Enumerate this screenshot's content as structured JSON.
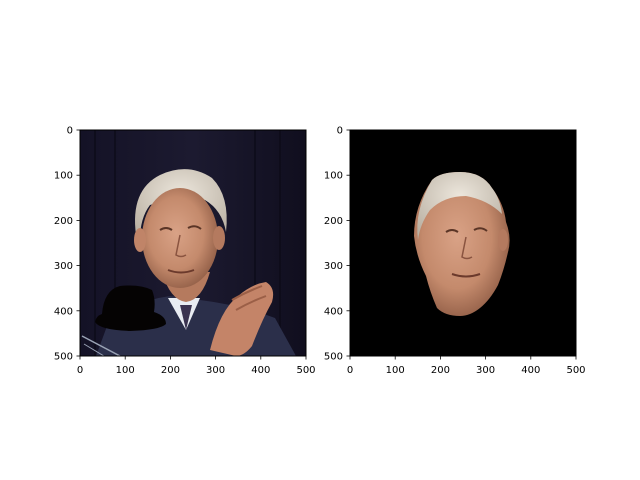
{
  "chart_data": [
    {
      "type": "image",
      "panel": "left",
      "content": "Original photo of an older man with light gray hair clapping, dark curtain background, a black hat-shaped blob near lower-left",
      "xlim": [
        0,
        500
      ],
      "ylim": [
        500,
        0
      ],
      "x_ticks": [
        0,
        100,
        200,
        300,
        400,
        500
      ],
      "y_ticks": [
        0,
        100,
        200,
        300,
        400,
        500
      ],
      "x_tick_labels": [
        "0",
        "100",
        "200",
        "300",
        "400",
        "500"
      ],
      "y_tick_labels": [
        "0",
        "100",
        "200",
        "300",
        "400",
        "500"
      ],
      "title": "",
      "xlabel": "",
      "ylabel": ""
    },
    {
      "type": "image",
      "panel": "right",
      "content": "Segmented face of the same man on a black background",
      "xlim": [
        0,
        500
      ],
      "ylim": [
        500,
        0
      ],
      "x_ticks": [
        0,
        100,
        200,
        300,
        400,
        500
      ],
      "y_ticks": [
        0,
        100,
        200,
        300,
        400,
        500
      ],
      "x_tick_labels": [
        "0",
        "100",
        "200",
        "300",
        "400",
        "500"
      ],
      "y_tick_labels": [
        "0",
        "100",
        "200",
        "300",
        "400",
        "500"
      ],
      "title": "",
      "xlabel": "",
      "ylabel": ""
    }
  ],
  "colors": {
    "axis": "#000000",
    "skin": "#c98e72",
    "skin_shadow": "#8e5a44",
    "hair": "#d9d2c6",
    "suit": "#2b2f4a",
    "shirt": "#e8ecf2",
    "curtain": "#161427",
    "background_black": "#000000"
  }
}
